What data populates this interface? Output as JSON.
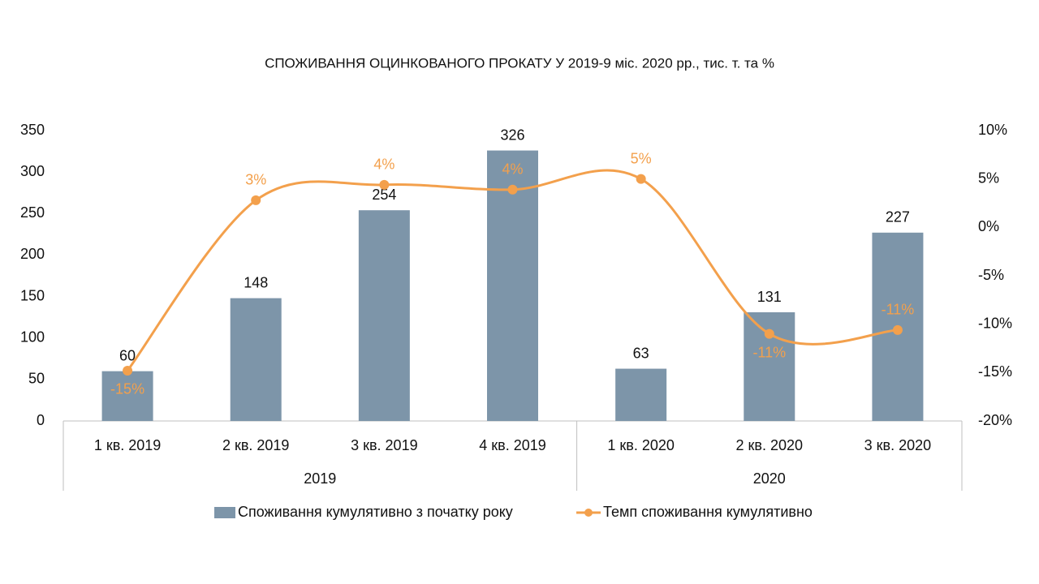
{
  "chart_data": {
    "type": "bar",
    "title": "СПОЖИВАННЯ ОЦИНКОВАНОГО ПРОКАТУ У 2019-9 міс. 2020 рр., тис. т. та %",
    "categories": [
      "1 кв. 2019",
      "2 кв. 2019",
      "3 кв. 2019",
      "4 кв. 2019",
      "1 кв. 2020",
      "2 кв. 2020",
      "3 кв. 2020"
    ],
    "groups": [
      "2019",
      "2020"
    ],
    "series": [
      {
        "name": "Споживання кумулятивно з початку року",
        "type": "bar",
        "color": "#7d95a9",
        "values": [
          60,
          148,
          254,
          326,
          63,
          131,
          227
        ]
      },
      {
        "name": "Темп споживання кумулятивно",
        "type": "line",
        "axis": "y2",
        "color": "#f3a04c",
        "smooth": true,
        "values": [
          -14.8,
          2.8,
          4.4,
          3.9,
          5.0,
          -11.0,
          -10.6
        ],
        "value_labels": [
          "-15%",
          "3%",
          "4%",
          "4%",
          "5%",
          "-11%",
          "-11%"
        ]
      }
    ],
    "ylim": [
      0,
      350
    ],
    "yticks": [
      0,
      50,
      100,
      150,
      200,
      250,
      300,
      350
    ],
    "y2lim": [
      -20,
      10
    ],
    "y2ticks": [
      {
        "value": -20,
        "label": "-20%"
      },
      {
        "value": -15,
        "label": "-15%"
      },
      {
        "value": -10,
        "label": "-10%"
      },
      {
        "value": -5,
        "label": "-5%"
      },
      {
        "value": 0,
        "label": "0%"
      },
      {
        "value": 5,
        "label": "5%"
      },
      {
        "value": 10,
        "label": "10%"
      }
    ],
    "legend": "bottom"
  }
}
